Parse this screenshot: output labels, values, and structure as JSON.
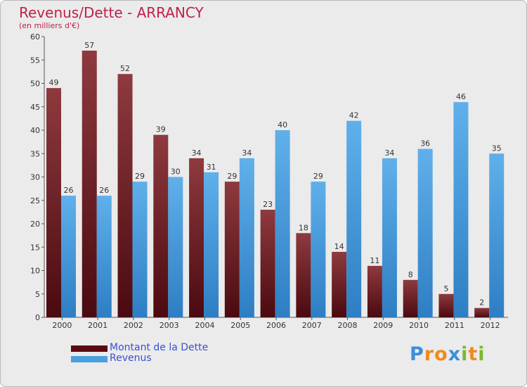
{
  "colors": {
    "title": "#c0204a",
    "dette_dark": "#4a0a10",
    "dette_light": "#8e3a3e",
    "revenus_dark": "#2e7ec4",
    "revenus_light": "#5fb0ea",
    "legend_text": "#3a4fd6",
    "axis_text": "#333333"
  },
  "chart_data": {
    "type": "bar",
    "title": "Revenus/Dette - ARRANCY",
    "subtitle": "(en milliers d'€)",
    "categories": [
      "2000",
      "2001",
      "2002",
      "2003",
      "2004",
      "2005",
      "2006",
      "2007",
      "2008",
      "2009",
      "2010",
      "2011",
      "2012"
    ],
    "series": [
      {
        "name": "Montant de la Dette",
        "values": [
          49,
          57,
          52,
          39,
          34,
          29,
          23,
          18,
          14,
          11,
          8,
          5,
          2
        ]
      },
      {
        "name": "Revenus",
        "values": [
          26,
          26,
          29,
          30,
          31,
          34,
          40,
          29,
          42,
          34,
          36,
          46,
          35
        ]
      }
    ],
    "ylim": [
      0,
      60
    ],
    "yticks": [
      0,
      5,
      10,
      15,
      20,
      25,
      30,
      35,
      40,
      45,
      50,
      55,
      60
    ],
    "grid": false,
    "legend_position": "bottom-left"
  },
  "logo": {
    "letters": [
      "P",
      "r",
      "o",
      "x",
      "i",
      "t",
      "i"
    ],
    "colors": [
      "#3a8fd8",
      "#f08a1c",
      "#f08a1c",
      "#3a8fd8",
      "#7ab82e",
      "#f08a1c",
      "#7ab82e"
    ]
  }
}
